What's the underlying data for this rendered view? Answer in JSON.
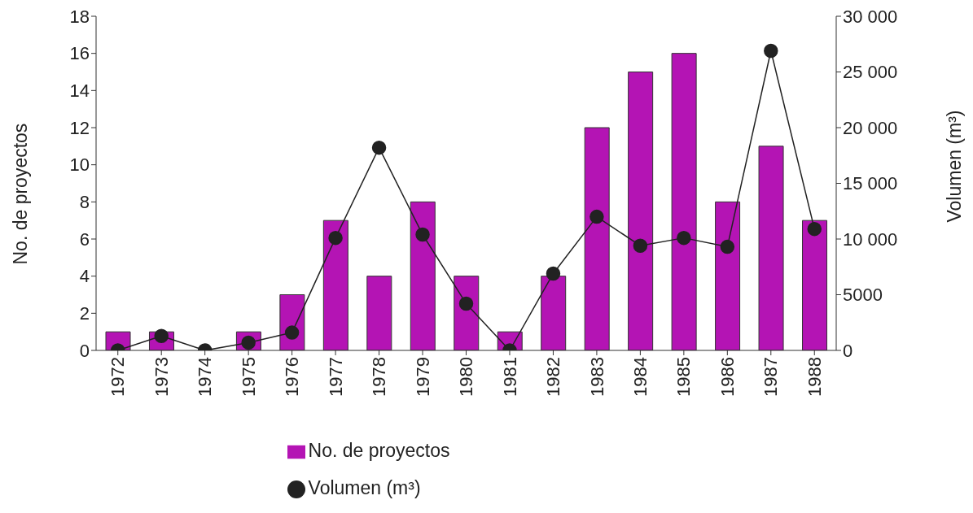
{
  "chart_data": {
    "type": "bar",
    "categories": [
      "1972",
      "1973",
      "1974",
      "1975",
      "1976",
      "1977",
      "1978",
      "1979",
      "1980",
      "1981",
      "1982",
      "1983",
      "1984",
      "1985",
      "1986",
      "1987",
      "1988"
    ],
    "series": [
      {
        "name": "No. de proyectos",
        "color": "#b414b4",
        "values": [
          1,
          1,
          0,
          1,
          3,
          7,
          4,
          8,
          4,
          1,
          4,
          12,
          15,
          16,
          8,
          11,
          7
        ]
      },
      {
        "name": "Volumen (m³)",
        "type": "line",
        "axis": "y2",
        "color": "#222222",
        "values": [
          0,
          1300,
          0,
          700,
          1600,
          10100,
          18200,
          10400,
          4200,
          0,
          6900,
          12000,
          9400,
          10100,
          9300,
          26900,
          10900
        ]
      }
    ],
    "ylabel": "No. de proyectos",
    "y2label": "Volumen (m³)",
    "ylim": [
      0,
      18
    ],
    "yticks": [
      0,
      2,
      4,
      6,
      8,
      10,
      12,
      14,
      16,
      18
    ],
    "y2lim": [
      0,
      30000
    ],
    "y2ticks": [
      0,
      5000,
      {
        "value": 10000,
        "label": "10 000"
      },
      {
        "value": 15000,
        "label": "15 000"
      },
      {
        "value": 20000,
        "label": "20 000"
      },
      {
        "value": 25000,
        "label": "25 000"
      },
      {
        "value": 30000,
        "label": "30 000"
      }
    ],
    "grid": false,
    "legend": "bottom",
    "marker": "circle",
    "line_style": "solid"
  }
}
